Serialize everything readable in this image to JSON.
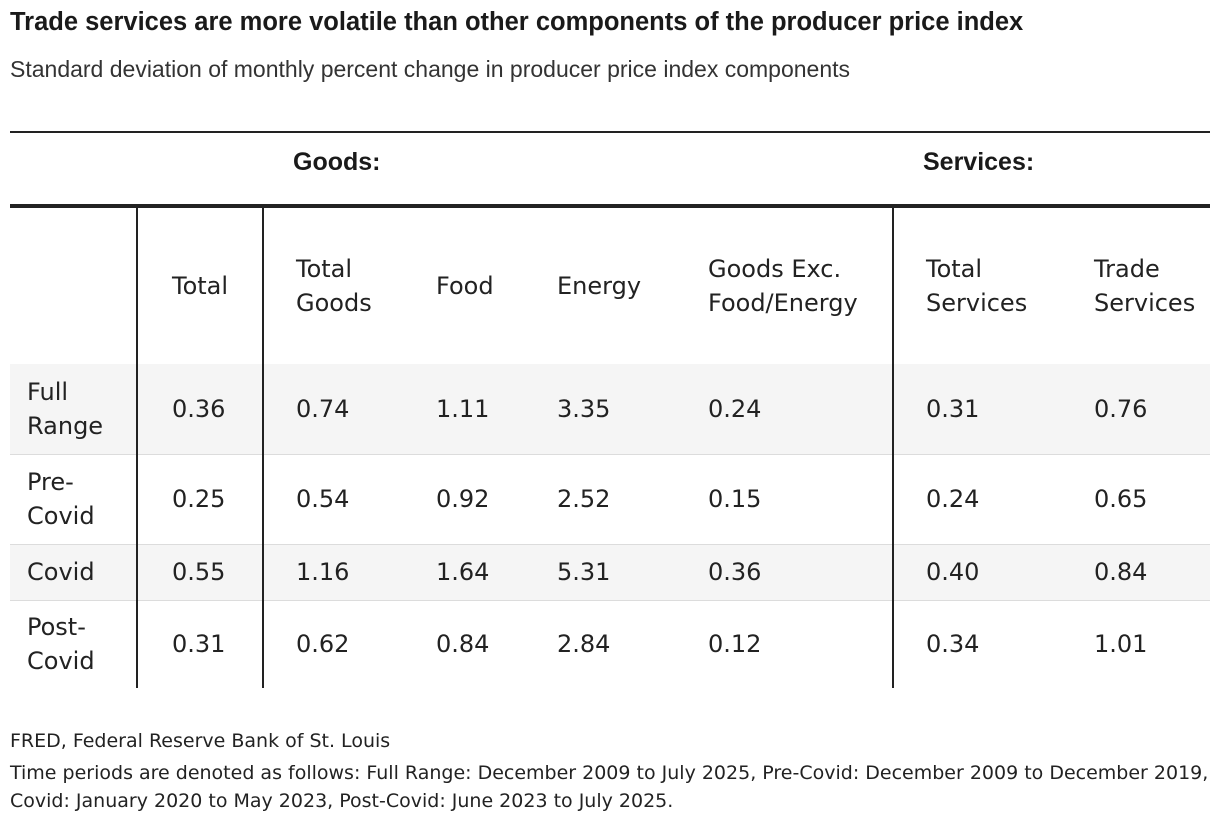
{
  "chart_data": {
    "type": "table",
    "title": "Trade services are more volatile than other components of the producer price index",
    "subtitle": "Standard deviation of monthly percent change in producer price index components",
    "column_groups": [
      {
        "label": "Goods:"
      },
      {
        "label": "Services:"
      }
    ],
    "columns": [
      "",
      "Total",
      "Total Goods",
      "Food",
      "Energy",
      "Goods Exc. Food/Energy",
      "Total Services",
      "Trade Services"
    ],
    "column_display": [
      [
        ""
      ],
      [
        "Total"
      ],
      [
        "Total",
        "Goods"
      ],
      [
        "Food"
      ],
      [
        "Energy"
      ],
      [
        "Goods Exc.",
        "Food/Energy"
      ],
      [
        "Total",
        "Services"
      ],
      [
        "Trade",
        "Services"
      ]
    ],
    "rows": [
      {
        "label": "Full Range",
        "label_lines": [
          "Full",
          "Range"
        ],
        "values": [
          "0.36",
          "0.74",
          "1.11",
          "3.35",
          "0.24",
          "0.31",
          "0.76"
        ]
      },
      {
        "label": "Pre-Covid",
        "label_lines": [
          "Pre-",
          "Covid"
        ],
        "values": [
          "0.25",
          "0.54",
          "0.92",
          "2.52",
          "0.15",
          "0.24",
          "0.65"
        ]
      },
      {
        "label": "Covid",
        "label_lines": [
          "Covid"
        ],
        "values": [
          "0.55",
          "1.16",
          "1.64",
          "5.31",
          "0.36",
          "0.40",
          "0.84"
        ]
      },
      {
        "label": "Post-Covid",
        "label_lines": [
          "Post-",
          "Covid"
        ],
        "values": [
          "0.31",
          "0.62",
          "0.84",
          "2.84",
          "0.12",
          "0.34",
          "1.01"
        ]
      }
    ],
    "source": "FRED, Federal Reserve Bank of St. Louis",
    "note": "Time periods are denoted as follows: Full Range: December 2009 to July 2025, Pre-Covid: December 2009 to December 2019, Covid: January 2020 to May 2023, Post-Covid: June 2023 to July 2025."
  },
  "colors": {
    "text": "#222222",
    "band": "#f5f5f5",
    "rule": "#222222"
  }
}
